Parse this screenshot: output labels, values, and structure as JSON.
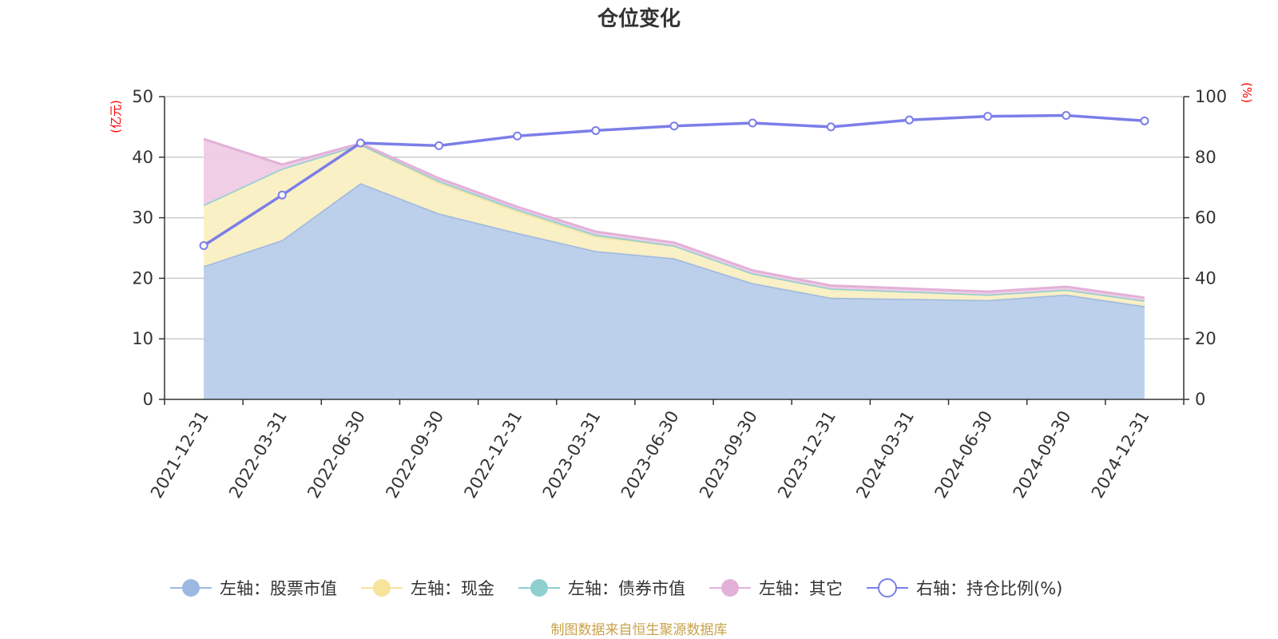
{
  "chart_data": {
    "type": "area",
    "title": "仓位变化",
    "categories": [
      "2021-12-31",
      "2022-03-31",
      "2022-06-30",
      "2022-09-30",
      "2022-12-31",
      "2023-03-31",
      "2023-06-30",
      "2023-09-30",
      "2023-12-31",
      "2024-03-31",
      "2024-06-30",
      "2024-09-30",
      "2024-12-31"
    ],
    "left_axis": {
      "unit": "(亿元)",
      "ylim": [
        0,
        50
      ],
      "ticks": [
        "0",
        "10",
        "20",
        "30",
        "40",
        "50"
      ]
    },
    "right_axis": {
      "unit": "(%)",
      "ylim": [
        0,
        100
      ],
      "ticks": [
        "0",
        "20",
        "40",
        "60",
        "80",
        "100"
      ]
    },
    "stacked": true,
    "series": [
      {
        "name": "左轴：股票市值",
        "axis": "left",
        "kind": "area",
        "color": "#9db8e0",
        "fill": "#b8cdea",
        "values": [
          22.0,
          26.3,
          35.7,
          30.7,
          27.5,
          24.5,
          23.3,
          19.2,
          16.8,
          16.6,
          16.4,
          17.3,
          15.4
        ]
      },
      {
        "name": "左轴：现金",
        "axis": "left",
        "kind": "area",
        "color": "#f7e39a",
        "fill": "#faefc3",
        "values": [
          10.1,
          11.8,
          6.4,
          5.1,
          3.6,
          2.4,
          2.1,
          1.6,
          1.5,
          1.2,
          0.9,
          0.8,
          0.9
        ]
      },
      {
        "name": "左轴：债券市值",
        "axis": "left",
        "kind": "area",
        "color": "#8ecfd0",
        "fill": "#bfe3e4",
        "values": [
          0.0,
          0.0,
          0.0,
          0.3,
          0.3,
          0.3,
          0.0,
          0.0,
          0.0,
          0.0,
          0.0,
          0.0,
          0.0
        ]
      },
      {
        "name": "左轴：其它",
        "axis": "left",
        "kind": "area",
        "color": "#e3b1d8",
        "fill": "#efcbe5",
        "values": [
          10.9,
          0.7,
          0.2,
          0.4,
          0.4,
          0.5,
          0.5,
          0.5,
          0.5,
          0.5,
          0.5,
          0.5,
          0.5
        ]
      },
      {
        "name": "右轴：持仓比例(%)",
        "axis": "right",
        "kind": "line",
        "color": "#7b7ee8",
        "values": [
          50.8,
          67.5,
          84.7,
          83.8,
          87.0,
          88.8,
          90.3,
          91.3,
          90.0,
          92.3,
          93.5,
          93.8,
          92.0
        ]
      }
    ],
    "legend_position": "bottom",
    "source": "制图数据来自恒生聚源数据库"
  }
}
